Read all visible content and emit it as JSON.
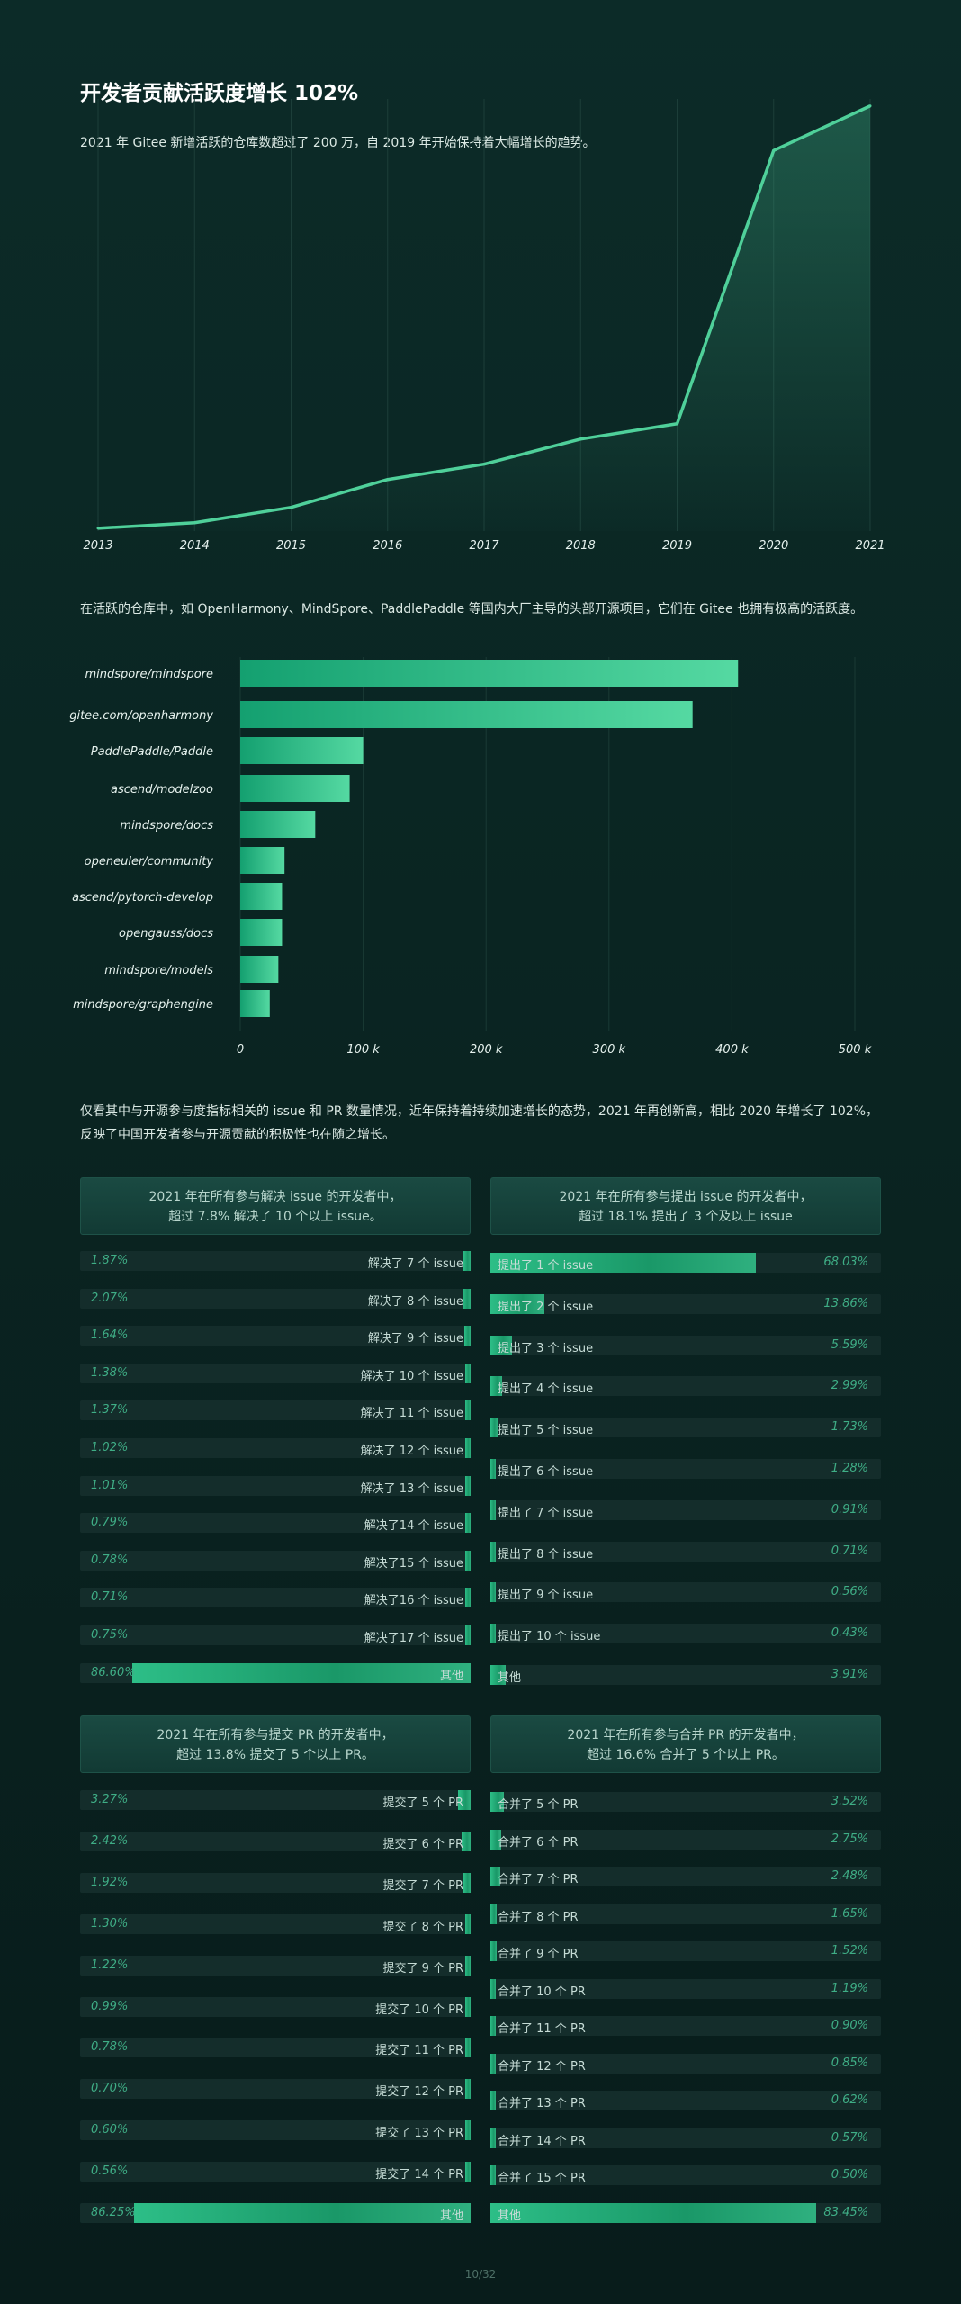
{
  "title": "开发者贡献活跃度增长 102%",
  "subtitle": "2021 年 Gitee 新增活跃的仓库数超过了 200 万，自 2019 年开始保持着大幅增长的趋势。",
  "para2": "在活跃的仓库中，如 OpenHarmony、MindSpore、PaddlePaddle 等国内大厂主导的头部开源项目，它们在 Gitee 也拥有极高的活跃度。",
  "para3_line1": "仅看其中与开源参与度指标相关的 issue 和 PR 数量情况，近年保持着持续加速增长的态势，2021 年再创新高，相比 2020 年增长了 102%，",
  "para3_line2": "反映了中国开发者参与开源贡献的积极性也在随之增长。",
  "colors": {
    "accent": "#4fd09a",
    "bar_start": "#14a070",
    "bar_end": "#55d9a2"
  },
  "chart_data": [
    {
      "type": "area",
      "title": "",
      "x": [
        "2013",
        "2014",
        "2015",
        "2016",
        "2017",
        "2018",
        "2019",
        "2020",
        "2021"
      ],
      "values": [
        2,
        6,
        17,
        37,
        48,
        66,
        77,
        273,
        305
      ],
      "ylim": [
        0,
        310
      ],
      "grid": true
    },
    {
      "type": "bar",
      "orientation": "horizontal",
      "categories": [
        "mindspore/mindspore",
        "gitee.com/openharmony",
        "PaddlePaddle/Paddle",
        "ascend/modelzoo",
        "mindspore/docs",
        "openeuler/community",
        "ascend/pytorch-develop",
        "opengauss/docs",
        "mindspore/models",
        "mindspore/graphengine"
      ],
      "values": [
        405,
        368,
        100,
        89,
        61,
        36,
        34,
        34,
        31,
        24
      ],
      "xticks": [
        "0",
        "100 k",
        "200 k",
        "300 k",
        "400 k",
        "500 k"
      ],
      "xlim": [
        0,
        500
      ],
      "grid": true
    }
  ],
  "panels": {
    "issue_resolve": {
      "header_line1": "2021 年在所有参与解决 issue 的开发者中，",
      "header_line2": "超过 7.8% 解决了 10 个以上 issue。",
      "rows": [
        {
          "label": "解决了 7 个 issue",
          "pct": "1.87%",
          "value": 1.87
        },
        {
          "label": "解决了 8 个 issue",
          "pct": "2.07%",
          "value": 2.07
        },
        {
          "label": "解决了 9 个 issue",
          "pct": "1.64%",
          "value": 1.64
        },
        {
          "label": "解决了 10 个 issue",
          "pct": "1.38%",
          "value": 1.38
        },
        {
          "label": "解决了 11 个 issue",
          "pct": "1.37%",
          "value": 1.37
        },
        {
          "label": "解决了 12 个 issue",
          "pct": "1.02%",
          "value": 1.02
        },
        {
          "label": "解决了 13 个 issue",
          "pct": "1.01%",
          "value": 1.01
        },
        {
          "label": "解决了14 个 issue",
          "pct": "0.79%",
          "value": 0.79
        },
        {
          "label": "解决了15 个 issue",
          "pct": "0.78%",
          "value": 0.78
        },
        {
          "label": "解决了16 个 issue",
          "pct": "0.71%",
          "value": 0.71
        },
        {
          "label": "解决了17 个 issue",
          "pct": "0.75%",
          "value": 0.75
        },
        {
          "label": "其他",
          "pct": "86.60%",
          "value": 86.6
        }
      ]
    },
    "issue_submit": {
      "header_line1": "2021 年在所有参与提出 issue 的开发者中，",
      "header_line2": "超过 18.1% 提出了 3 个及以上 issue",
      "rows": [
        {
          "label": "提出了 1 个 issue",
          "pct": "68.03%",
          "value": 68.03
        },
        {
          "label": "提出了 2 个 issue",
          "pct": "13.86%",
          "value": 13.86
        },
        {
          "label": "提出了 3 个 issue",
          "pct": "5.59%",
          "value": 5.59
        },
        {
          "label": "提出了 4 个 issue",
          "pct": "2.99%",
          "value": 2.99
        },
        {
          "label": "提出了 5 个 issue",
          "pct": "1.73%",
          "value": 1.73
        },
        {
          "label": "提出了 6 个 issue",
          "pct": "1.28%",
          "value": 1.28
        },
        {
          "label": "提出了 7 个 issue",
          "pct": "0.91%",
          "value": 0.91
        },
        {
          "label": "提出了 8 个 issue",
          "pct": "0.71%",
          "value": 0.71
        },
        {
          "label": "提出了 9 个 issue",
          "pct": "0.56%",
          "value": 0.56
        },
        {
          "label": "提出了 10 个 issue",
          "pct": "0.43%",
          "value": 0.43
        },
        {
          "label": "其他",
          "pct": "3.91%",
          "value": 3.91
        }
      ]
    },
    "pr_submit": {
      "header_line1": "2021 年在所有参与提交 PR 的开发者中，",
      "header_line2": "超过 13.8% 提交了 5 个以上 PR。",
      "rows": [
        {
          "label": "提交了 5 个 PR",
          "pct": "3.27%",
          "value": 3.27
        },
        {
          "label": "提交了 6 个 PR",
          "pct": "2.42%",
          "value": 2.42
        },
        {
          "label": "提交了 7 个 PR",
          "pct": "1.92%",
          "value": 1.92
        },
        {
          "label": "提交了 8 个 PR",
          "pct": "1.30%",
          "value": 1.3
        },
        {
          "label": "提交了 9 个 PR",
          "pct": "1.22%",
          "value": 1.22
        },
        {
          "label": "提交了 10 个 PR",
          "pct": "0.99%",
          "value": 0.99
        },
        {
          "label": "提交了 11 个 PR",
          "pct": "0.78%",
          "value": 0.78
        },
        {
          "label": "提交了 12 个 PR",
          "pct": "0.70%",
          "value": 0.7
        },
        {
          "label": "提交了 13 个 PR",
          "pct": "0.60%",
          "value": 0.6
        },
        {
          "label": "提交了 14 个 PR",
          "pct": "0.56%",
          "value": 0.56
        },
        {
          "label": "其他",
          "pct": "86.25%",
          "value": 86.25
        }
      ]
    },
    "pr_merge": {
      "header_line1": "2021 年在所有参与合并 PR 的开发者中，",
      "header_line2": "超过 16.6% 合并了 5 个以上 PR。",
      "rows": [
        {
          "label": "合并了 5 个 PR",
          "pct": "3.52%",
          "value": 3.52
        },
        {
          "label": "合并了 6 个 PR",
          "pct": "2.75%",
          "value": 2.75
        },
        {
          "label": "合并了 7 个 PR",
          "pct": "2.48%",
          "value": 2.48
        },
        {
          "label": "合并了 8 个 PR",
          "pct": "1.65%",
          "value": 1.65
        },
        {
          "label": "合并了 9 个 PR",
          "pct": "1.52%",
          "value": 1.52
        },
        {
          "label": "合并了 10 个 PR",
          "pct": "1.19%",
          "value": 1.19
        },
        {
          "label": "合并了 11 个 PR",
          "pct": "0.90%",
          "value": 0.9
        },
        {
          "label": "合并了 12 个 PR",
          "pct": "0.85%",
          "value": 0.85
        },
        {
          "label": "合并了 13 个 PR",
          "pct": "0.62%",
          "value": 0.62
        },
        {
          "label": "合并了 14 个 PR",
          "pct": "0.57%",
          "value": 0.57
        },
        {
          "label": "合并了 15 个 PR",
          "pct": "0.50%",
          "value": 0.5
        },
        {
          "label": "其他",
          "pct": "83.45%",
          "value": 83.45
        }
      ]
    }
  },
  "page_number": "10/32"
}
